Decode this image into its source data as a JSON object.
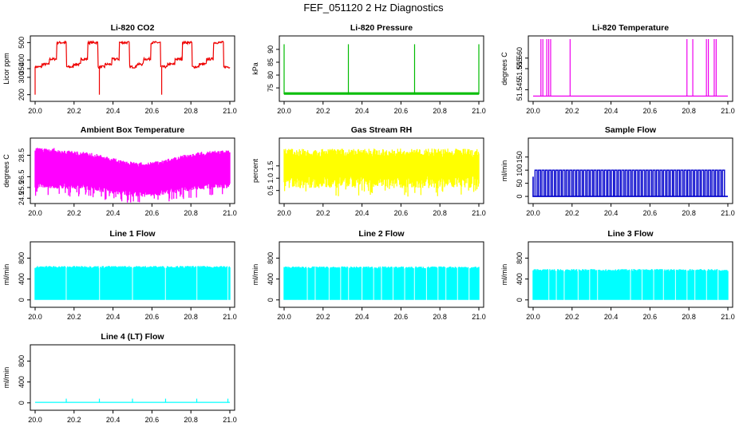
{
  "page": {
    "title": "FEF_051120  2 Hz Diagnostics"
  },
  "chart_data": [
    {
      "type": "line",
      "title": "Li-820 CO2",
      "xlabel": "",
      "ylabel": "Licor ppm",
      "color": "#ee0000",
      "xlim": [
        20.0,
        21.0
      ],
      "ylim": [
        180,
        520
      ],
      "xticks": [
        "20.0",
        "20.2",
        "20.4",
        "20.6",
        "20.8",
        "21.0"
      ],
      "yticks": [
        200,
        300,
        350,
        400,
        500
      ],
      "pattern": "steps",
      "series": [
        {
          "name": "",
          "values_summary": "stepped trace 360-500 ppm with spikes to 200"
        }
      ]
    },
    {
      "type": "line",
      "title": "Li-820 Pressure",
      "xlabel": "",
      "ylabel": "kPa",
      "color": "#00bb00",
      "xlim": [
        20.0,
        21.0
      ],
      "ylim": [
        71,
        94
      ],
      "xticks": [
        "20.0",
        "20.2",
        "20.4",
        "20.6",
        "20.8",
        "21.0"
      ],
      "yticks": [
        75,
        80,
        85,
        90
      ],
      "pattern": "flat-spikes",
      "base": 72.5,
      "spikes_x": [
        20.0,
        20.33,
        20.67,
        21.0
      ],
      "spike_y": 92
    },
    {
      "type": "line",
      "title": "Li-820 Temperature",
      "xlabel": "",
      "ylabel": "degrees C",
      "color": "#ee00ee",
      "xlim": [
        20.0,
        21.0
      ],
      "ylim": [
        51.541,
        51.569
      ],
      "xticks": [
        "20.0",
        "20.2",
        "20.4",
        "20.6",
        "20.8",
        "21.0"
      ],
      "yticks": [
        "51.545",
        "51.555",
        "51.560"
      ],
      "pattern": "flat-spikes",
      "base": 51.542,
      "spikes_x": [
        20.04,
        20.05,
        20.07,
        20.08,
        20.09,
        20.19,
        20.79,
        20.82,
        20.89,
        20.9,
        20.93,
        20.94
      ],
      "spike_y": 51.569
    },
    {
      "type": "line",
      "title": "Ambient Box Temperature",
      "xlabel": "",
      "ylabel": "degrees C",
      "color": "#ff00ff",
      "xlim": [
        20.0,
        21.0
      ],
      "ylim": [
        24.3,
        29.8
      ],
      "xticks": [
        "20.0",
        "20.2",
        "20.4",
        "20.6",
        "20.8",
        "21.0"
      ],
      "yticks": [
        "24.5",
        "25.5",
        "26.5",
        "28.5"
      ],
      "pattern": "band",
      "top": 28.8,
      "bottom": 25.4
    },
    {
      "type": "line",
      "title": "Gas Stream RH",
      "xlabel": "",
      "ylabel": "percent",
      "color": "#ffff00",
      "xlim": [
        20.0,
        21.0
      ],
      "ylim": [
        0.1,
        2.5
      ],
      "xticks": [
        "20.0",
        "20.2",
        "20.4",
        "20.6",
        "20.8",
        "21.0"
      ],
      "yticks": [
        "0.5",
        "1.0",
        "1.5"
      ],
      "pattern": "band",
      "top": 2.2,
      "bottom": 0.6
    },
    {
      "type": "line",
      "title": "Sample Flow",
      "xlabel": "",
      "ylabel": "ml/min",
      "color": "#0000cc",
      "xlim": [
        20.0,
        21.0
      ],
      "ylim": [
        -15,
        210
      ],
      "xticks": [
        "20.0",
        "20.2",
        "20.4",
        "20.6",
        "20.8",
        "21.0"
      ],
      "yticks": [
        0,
        50,
        100,
        150
      ],
      "pattern": "pulses",
      "low": 0,
      "high": 100,
      "count": 55
    },
    {
      "type": "area",
      "title": "Line 1 Flow",
      "xlabel": "",
      "ylabel": "ml/min",
      "color": "#00ffff",
      "xlim": [
        20.0,
        21.0
      ],
      "ylim": [
        -80,
        1050
      ],
      "xticks": [
        "20.0",
        "20.2",
        "20.4",
        "20.6",
        "20.8",
        "21.0"
      ],
      "yticks": [
        0,
        400,
        800
      ],
      "pattern": "fill",
      "level": 630,
      "gaps_x": [
        20.16,
        20.33,
        20.5,
        20.67,
        20.83,
        20.99
      ]
    },
    {
      "type": "area",
      "title": "Line 2 Flow",
      "xlabel": "",
      "ylabel": "ml/min",
      "color": "#00ffff",
      "xlim": [
        20.0,
        21.0
      ],
      "ylim": [
        -80,
        1050
      ],
      "xticks": [
        "20.0",
        "20.2",
        "20.4",
        "20.6",
        "20.8",
        "21.0"
      ],
      "yticks": [
        0,
        400,
        800
      ],
      "pattern": "fill",
      "level": 620,
      "gaps_x": [
        20.12,
        20.16,
        20.23,
        20.29,
        20.33,
        20.4,
        20.46,
        20.5,
        20.56,
        20.62,
        20.67,
        20.73,
        20.79,
        20.83,
        20.89,
        20.95
      ]
    },
    {
      "type": "area",
      "title": "Line 3 Flow",
      "xlabel": "",
      "ylabel": "ml/min",
      "color": "#00ffff",
      "xlim": [
        20.0,
        21.0
      ],
      "ylim": [
        -80,
        1050
      ],
      "xticks": [
        "20.0",
        "20.2",
        "20.4",
        "20.6",
        "20.8",
        "21.0"
      ],
      "yticks": [
        0,
        400,
        800
      ],
      "pattern": "fill",
      "level": 570,
      "gaps_x": [
        20.08,
        20.12,
        20.16,
        20.23,
        20.29,
        20.33,
        20.5,
        20.56,
        20.62,
        20.67,
        20.73,
        20.79,
        20.83,
        20.89,
        20.95
      ]
    },
    {
      "type": "line",
      "title": "Line 4 (LT) Flow",
      "xlabel": "",
      "ylabel": "ml/min",
      "color": "#00ffff",
      "xlim": [
        20.0,
        21.0
      ],
      "ylim": [
        -80,
        1050
      ],
      "xticks": [
        "20.0",
        "20.2",
        "20.4",
        "20.6",
        "20.8",
        "21.0"
      ],
      "yticks": [
        0,
        400,
        800
      ],
      "pattern": "flat-spikes",
      "base": 10,
      "spikes_x": [
        20.16,
        20.33,
        20.5,
        20.67,
        20.83,
        20.99
      ],
      "spike_y": 80
    }
  ]
}
